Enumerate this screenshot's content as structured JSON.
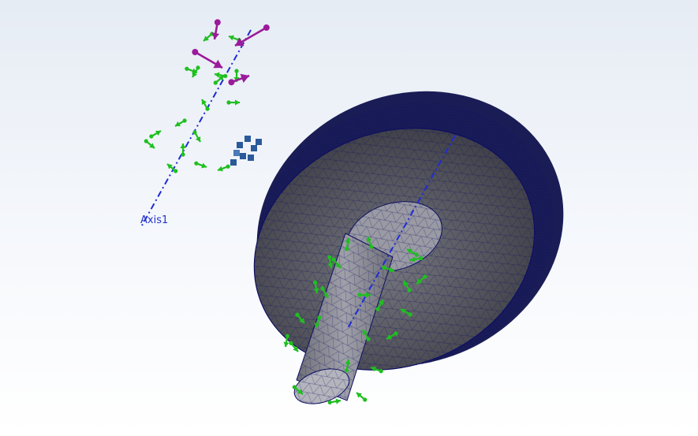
{
  "viewport": {
    "background": "#eef2f8",
    "axis": {
      "label": "Axis1",
      "color": "#1e2bd6"
    }
  },
  "model": {
    "mesh_fill": "#5c5c64",
    "mesh_lines": "#0d1060",
    "shaft_fill": "#8c8c96"
  },
  "glyphs": {
    "fixture_arrow_color": "#1fbf1f",
    "load_arrow_color": "#9b1a9b",
    "contact_marker_color": "#2a5a9a"
  }
}
